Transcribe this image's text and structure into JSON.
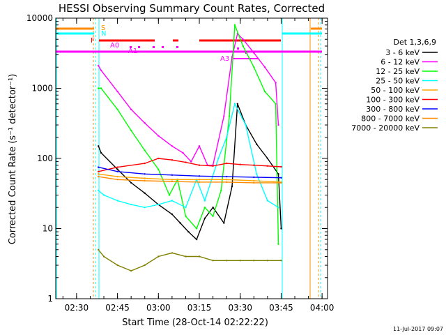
{
  "chart_data": {
    "type": "line",
    "title": "HESSI Observing Summary Count Rates, Corrected",
    "xlabel": "Start Time (28-Oct-14 02:22:22)",
    "ylabel": "Corrected Count Rate (s⁻¹ detector⁻¹)",
    "y_scale": "log",
    "ylim": [
      1,
      10000
    ],
    "xlim": [
      "02:22:22",
      "04:02:00"
    ],
    "x_ticks": [
      "02:30",
      "02:45",
      "03:00",
      "03:15",
      "03:30",
      "03:45",
      "04:00"
    ],
    "y_ticks": [
      "1",
      "10",
      "100",
      "1000",
      "10000"
    ],
    "legend_title": "Det 1,3,6,9",
    "legend_position": "right",
    "timestamp": "11-Jul-2017 09:07",
    "series": [
      {
        "name": "3 - 6 keV",
        "color": "#000000",
        "x": [
          "02:38:00",
          "02:39:00",
          "02:45:00",
          "02:50:00",
          "02:55:00",
          "03:00:00",
          "03:05:00",
          "03:08:00",
          "03:11:00",
          "03:14:00",
          "03:17:00",
          "03:20:00",
          "03:24:00",
          "03:27:00",
          "03:29:00",
          "03:32:00",
          "03:36:00",
          "03:40:00",
          "03:44:00",
          "03:45:00"
        ],
        "y": [
          150,
          120,
          70,
          45,
          32,
          22,
          16,
          12,
          9,
          7,
          14,
          20,
          12,
          40,
          600,
          300,
          160,
          100,
          60,
          10
        ]
      },
      {
        "name": "6 - 12 keV",
        "color": "#ff00ff",
        "x": [
          "02:38:00",
          "02:39:00",
          "02:45:00",
          "02:50:00",
          "02:55:00",
          "03:00:00",
          "03:05:00",
          "03:09:00",
          "03:12:00",
          "03:15:00",
          "03:18:00",
          "03:20:00",
          "03:24:00",
          "03:27:00",
          "03:29:00",
          "03:31:00",
          "03:35:00",
          "03:39:00",
          "03:43:00",
          "03:44:00"
        ],
        "y": [
          2100,
          1800,
          900,
          500,
          320,
          210,
          150,
          120,
          90,
          150,
          80,
          80,
          400,
          2800,
          6000,
          5000,
          3200,
          2000,
          1200,
          300
        ]
      },
      {
        "name": "12 - 25 keV",
        "color": "#00ff00",
        "x": [
          "02:38:00",
          "02:39:00",
          "02:45:00",
          "02:50:00",
          "02:55:00",
          "03:00:00",
          "03:04:00",
          "03:07:00",
          "03:10:00",
          "03:14:00",
          "03:17:00",
          "03:20:00",
          "03:23:00",
          "03:26:00",
          "03:28:00",
          "03:31:00",
          "03:35:00",
          "03:39:00",
          "03:43:00",
          "03:44:00"
        ],
        "y": [
          1000,
          1000,
          500,
          250,
          130,
          70,
          30,
          50,
          15,
          10,
          20,
          15,
          35,
          400,
          8000,
          4000,
          2000,
          900,
          600,
          6
        ]
      },
      {
        "name": "25 - 50 keV",
        "color": "#00ffff",
        "x": [
          "02:38:00",
          "02:40:00",
          "02:45:00",
          "02:50:00",
          "02:55:00",
          "03:00:00",
          "03:05:00",
          "03:10:00",
          "03:14:00",
          "03:17:00",
          "03:22:00",
          "03:25:00",
          "03:28:00",
          "03:32:00",
          "03:36:00",
          "03:40:00",
          "03:44:00"
        ],
        "y": [
          35,
          30,
          25,
          22,
          20,
          22,
          25,
          20,
          50,
          25,
          100,
          200,
          600,
          300,
          60,
          25,
          20
        ]
      },
      {
        "name": "50 - 100 keV",
        "color": "#ffa500",
        "x": [
          "02:38:00",
          "02:45:00",
          "02:55:00",
          "03:05:00",
          "03:15:00",
          "03:25:00",
          "03:35:00",
          "03:45:00"
        ],
        "y": [
          60,
          55,
          52,
          50,
          50,
          50,
          48,
          46
        ]
      },
      {
        "name": "100 - 300 keV",
        "color": "#ff0000",
        "x": [
          "02:38:00",
          "02:45:00",
          "02:55:00",
          "03:00:00",
          "03:05:00",
          "03:10:00",
          "03:15:00",
          "03:20:00",
          "03:25:00",
          "03:30:00",
          "03:35:00",
          "03:40:00",
          "03:45:00"
        ],
        "y": [
          65,
          75,
          85,
          100,
          95,
          88,
          80,
          78,
          85,
          82,
          80,
          78,
          76
        ]
      },
      {
        "name": "300 - 800 keV",
        "color": "#0000ff",
        "x": [
          "02:38:00",
          "02:45:00",
          "02:55:00",
          "03:05:00",
          "03:15:00",
          "03:25:00",
          "03:35:00",
          "03:45:00"
        ],
        "y": [
          75,
          65,
          60,
          58,
          56,
          55,
          54,
          53
        ]
      },
      {
        "name": "800 - 7000 keV",
        "color": "#ff8c00",
        "x": [
          "02:38:00",
          "02:45:00",
          "02:55:00",
          "03:05:00",
          "03:15:00",
          "03:25:00",
          "03:35:00",
          "03:45:00"
        ],
        "y": [
          55,
          50,
          48,
          47,
          46,
          46,
          45,
          45
        ]
      },
      {
        "name": "7000 - 20000 keV",
        "color": "#808000",
        "x": [
          "02:38:00",
          "02:40:00",
          "02:45:00",
          "02:50:00",
          "02:55:00",
          "03:00:00",
          "03:05:00",
          "03:10:00",
          "03:15:00",
          "03:20:00",
          "03:25:00",
          "03:30:00",
          "03:35:00",
          "03:40:00",
          "03:45:00"
        ],
        "y": [
          5,
          4,
          3,
          2.5,
          3,
          4,
          4.5,
          4,
          4,
          3.5,
          3.5,
          3.5,
          3.5,
          3.5,
          3.5
        ]
      }
    ],
    "flag_labels": [
      {
        "text": "S",
        "color": "#ff8c00"
      },
      {
        "text": "N",
        "color": "#00ffff"
      },
      {
        "text": "F",
        "color": "#ff0000"
      },
      {
        "text": "A0",
        "color": "#ff00ff"
      },
      {
        "text": "A1",
        "color": "#ff00ff"
      },
      {
        "text": "A3",
        "color": "#ff00ff"
      }
    ]
  }
}
